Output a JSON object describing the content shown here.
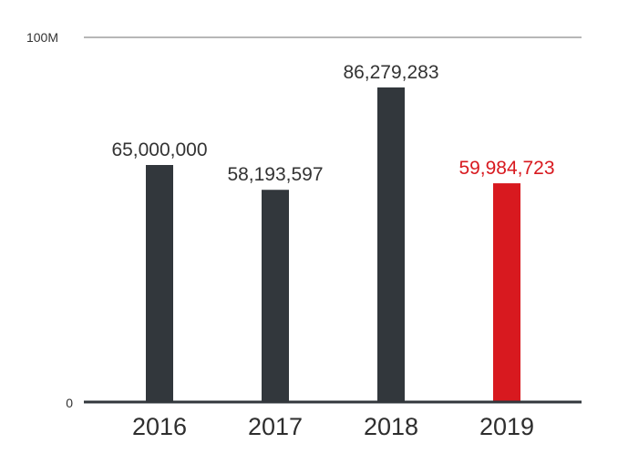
{
  "chart_data": {
    "type": "bar",
    "categories": [
      "2016",
      "2017",
      "2018",
      "2019"
    ],
    "values": [
      65000000,
      58193597,
      86279283,
      59984723
    ],
    "value_labels": [
      "65,000,000",
      "58,193,597",
      "86,279,283",
      "59,984,723"
    ],
    "ylim": [
      0,
      100000000
    ],
    "yticks": [
      {
        "value": 0,
        "label": "0"
      },
      {
        "value": 100000000,
        "label": "100M"
      }
    ],
    "bar_colors": [
      "#32373c",
      "#32373c",
      "#32373c",
      "#d8191f"
    ],
    "grid": false,
    "legend": "none"
  },
  "colors": {
    "bar_default": "#32373c",
    "bar_highlight": "#d8191f",
    "axis": "#32373c",
    "top_line": "#b7b7b7",
    "label_text": "#333333"
  }
}
